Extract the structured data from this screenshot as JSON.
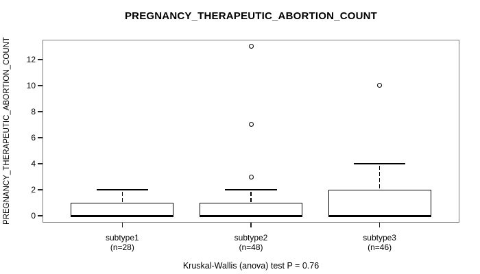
{
  "chart_data": {
    "type": "boxplot",
    "title": "PREGNANCY_THERAPEUTIC_ABORTION_COUNT",
    "ylabel": "PREGNANCY_THERAPEUTIC_ABORTION_COUNT",
    "footer": "Kruskal-Wallis (anova) test P = 0.76",
    "yticks": [
      0,
      2,
      4,
      6,
      8,
      10,
      12
    ],
    "ylim": [
      -0.52,
      13.52
    ],
    "grid": false,
    "legend": "none",
    "groups": [
      {
        "label": "subtype1",
        "sublabel": "(n=28)",
        "q1": 0,
        "median": 0,
        "q3": 1,
        "whisker_low": 0,
        "whisker_high": 2,
        "outliers": []
      },
      {
        "label": "subtype2",
        "sublabel": "(n=48)",
        "q1": 0,
        "median": 0,
        "q3": 1,
        "whisker_low": 0,
        "whisker_high": 2,
        "outliers": [
          3,
          7,
          13
        ]
      },
      {
        "label": "subtype3",
        "sublabel": "(n=46)",
        "q1": 0,
        "median": 0,
        "q3": 2,
        "whisker_low": 0,
        "whisker_high": 4,
        "outliers": [
          10
        ]
      }
    ],
    "colors": {
      "line": "#000000",
      "frame": "#777777",
      "fill": "#ffffff"
    }
  }
}
